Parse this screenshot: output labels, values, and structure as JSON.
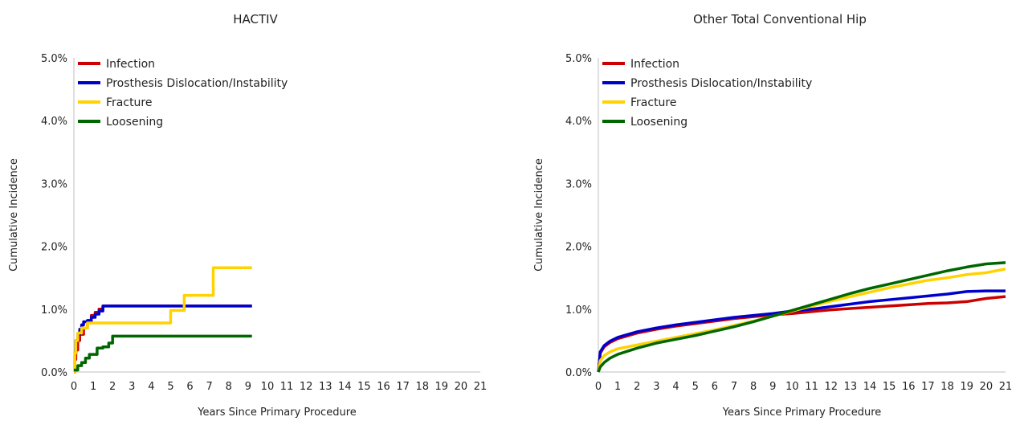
{
  "chart_data": [
    {
      "type": "line",
      "title": "HACTIV",
      "xlabel": "Years Since Primary Procedure",
      "ylabel": "Cumulative Incidence",
      "xlim": [
        0,
        21
      ],
      "ylim": [
        0,
        5
      ],
      "x_ticks": [
        "0",
        "1",
        "2",
        "3",
        "4",
        "5",
        "6",
        "7",
        "8",
        "9",
        "10",
        "11",
        "12",
        "13",
        "14",
        "15",
        "16",
        "17",
        "18",
        "19",
        "20",
        "21"
      ],
      "y_ticks": [
        "0.0%",
        "1.0%",
        "2.0%",
        "3.0%",
        "4.0%",
        "5.0%"
      ],
      "grid": false,
      "legend_position": "top-left",
      "step": true,
      "series": [
        {
          "name": "Infection",
          "color": "#cc0000",
          "x": [
            0,
            0.05,
            0.1,
            0.2,
            0.3,
            0.5,
            0.7,
            0.9,
            1.1,
            1.3,
            1.5,
            9.2
          ],
          "y": [
            0,
            0.2,
            0.35,
            0.5,
            0.6,
            0.7,
            0.8,
            0.9,
            0.95,
            1.0,
            1.05,
            1.05
          ]
        },
        {
          "name": "Prosthesis Dislocation/Instability",
          "color": "#0000cc",
          "x": [
            0,
            0.05,
            0.1,
            0.2,
            0.3,
            0.4,
            0.5,
            0.7,
            0.9,
            1.1,
            1.3,
            1.5,
            9.2
          ],
          "y": [
            0,
            0.3,
            0.5,
            0.6,
            0.68,
            0.75,
            0.8,
            0.82,
            0.87,
            0.92,
            0.97,
            1.05,
            1.05
          ]
        },
        {
          "name": "Fracture",
          "color": "#ffd200",
          "x": [
            0,
            0.05,
            0.1,
            0.2,
            0.4,
            0.7,
            5.0,
            5.7,
            7.2,
            9.2
          ],
          "y": [
            0,
            0.3,
            0.5,
            0.62,
            0.7,
            0.78,
            0.98,
            1.22,
            1.66,
            1.66
          ]
        },
        {
          "name": "Loosening",
          "color": "#006600",
          "x": [
            0,
            0.2,
            0.4,
            0.6,
            0.8,
            1.2,
            1.5,
            1.8,
            2.0,
            9.2
          ],
          "y": [
            0.03,
            0.1,
            0.15,
            0.22,
            0.28,
            0.38,
            0.4,
            0.46,
            0.57,
            0.57
          ]
        }
      ]
    },
    {
      "type": "line",
      "title": "Other Total Conventional Hip",
      "xlabel": "Years Since Primary Procedure",
      "ylabel": "Cumulative Incidence",
      "xlim": [
        0,
        21
      ],
      "ylim": [
        0,
        5
      ],
      "x_ticks": [
        "0",
        "1",
        "2",
        "3",
        "4",
        "5",
        "6",
        "7",
        "8",
        "9",
        "10",
        "11",
        "12",
        "13",
        "14",
        "15",
        "16",
        "17",
        "18",
        "19",
        "20",
        "21"
      ],
      "y_ticks": [
        "0.0%",
        "1.0%",
        "2.0%",
        "3.0%",
        "4.0%",
        "5.0%"
      ],
      "grid": false,
      "legend_position": "top-left",
      "step": false,
      "series": [
        {
          "name": "Infection",
          "color": "#cc0000",
          "x": [
            0,
            0.1,
            0.3,
            0.6,
            1,
            2,
            3,
            4,
            5,
            6,
            7,
            8,
            9,
            10,
            11,
            12,
            13,
            14,
            15,
            16,
            17,
            18,
            19,
            20,
            21
          ],
          "y": [
            0,
            0.3,
            0.4,
            0.47,
            0.53,
            0.62,
            0.68,
            0.73,
            0.77,
            0.81,
            0.85,
            0.88,
            0.91,
            0.93,
            0.96,
            0.99,
            1.01,
            1.03,
            1.05,
            1.07,
            1.09,
            1.1,
            1.12,
            1.17,
            1.2
          ]
        },
        {
          "name": "Prosthesis Dislocation/Instability",
          "color": "#0000cc",
          "x": [
            0,
            0.1,
            0.3,
            0.6,
            1,
            2,
            3,
            4,
            5,
            6,
            7,
            8,
            9,
            10,
            11,
            12,
            13,
            14,
            15,
            16,
            17,
            18,
            19,
            20,
            21
          ],
          "y": [
            0,
            0.32,
            0.42,
            0.49,
            0.55,
            0.64,
            0.7,
            0.75,
            0.79,
            0.83,
            0.87,
            0.9,
            0.93,
            0.97,
            1.0,
            1.04,
            1.08,
            1.12,
            1.15,
            1.18,
            1.21,
            1.24,
            1.28,
            1.29,
            1.29
          ]
        },
        {
          "name": "Fracture",
          "color": "#ffd200",
          "x": [
            0,
            0.1,
            0.3,
            0.6,
            1,
            2,
            3,
            4,
            5,
            6,
            7,
            8,
            9,
            10,
            11,
            12,
            13,
            14,
            15,
            16,
            17,
            18,
            19,
            20,
            21
          ],
          "y": [
            0,
            0.18,
            0.26,
            0.32,
            0.37,
            0.43,
            0.49,
            0.55,
            0.61,
            0.67,
            0.74,
            0.81,
            0.89,
            0.97,
            1.05,
            1.13,
            1.2,
            1.27,
            1.34,
            1.4,
            1.46,
            1.5,
            1.55,
            1.58,
            1.64
          ]
        },
        {
          "name": "Loosening",
          "color": "#006600",
          "x": [
            0,
            0.1,
            0.3,
            0.6,
            1,
            2,
            3,
            4,
            5,
            6,
            7,
            8,
            9,
            10,
            11,
            12,
            13,
            14,
            15,
            16,
            17,
            18,
            19,
            20,
            21
          ],
          "y": [
            0,
            0.08,
            0.15,
            0.22,
            0.28,
            0.38,
            0.46,
            0.52,
            0.58,
            0.65,
            0.72,
            0.8,
            0.89,
            0.98,
            1.07,
            1.16,
            1.25,
            1.33,
            1.4,
            1.47,
            1.54,
            1.61,
            1.67,
            1.72,
            1.74
          ]
        }
      ]
    }
  ]
}
